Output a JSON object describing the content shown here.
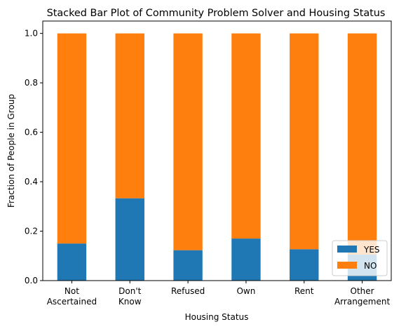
{
  "chart_data": {
    "type": "bar",
    "stacked": true,
    "title": "Stacked Bar Plot of Community Problem Solver and Housing Status",
    "xlabel": "Housing Status",
    "ylabel": "Fraction of People in Group",
    "categories": [
      [
        "Not",
        "Ascertained"
      ],
      [
        "Don't",
        "Know"
      ],
      [
        "Refused"
      ],
      [
        "Own"
      ],
      [
        "Rent"
      ],
      [
        "Other",
        "Arrangement"
      ]
    ],
    "series": [
      {
        "name": "YES",
        "color": "#1f77b4",
        "values": [
          0.15,
          0.333,
          0.123,
          0.17,
          0.127,
          0.105
        ]
      },
      {
        "name": "NO",
        "color": "#ff7f0e",
        "values": [
          0.85,
          0.667,
          0.877,
          0.83,
          0.873,
          0.895
        ]
      }
    ],
    "ylim": [
      0,
      1.05
    ],
    "yticks": [
      "0.0",
      "0.2",
      "0.4",
      "0.6",
      "0.8",
      "1.0"
    ],
    "legend": "lower-right",
    "grid": false
  }
}
